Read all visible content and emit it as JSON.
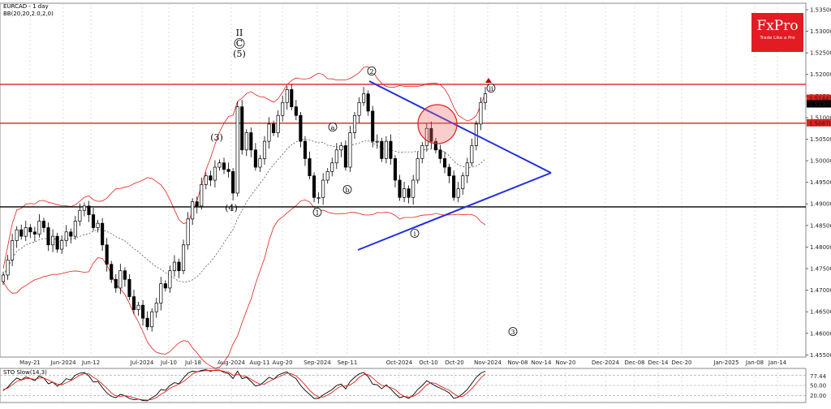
{
  "header": {
    "symbol": "EURCAD - 1 day",
    "indicator": "BB(20,20,2.0,2,0)",
    "osc_label": "STO Slow(14,3)"
  },
  "logo": {
    "brand": "FxPro",
    "tagline": "Trade Like a Pro"
  },
  "colors": {
    "candle_up": "#ffffff",
    "candle_down": "#000000",
    "band": "#e0201c",
    "level_red": "#e0201c",
    "level_black": "#000000",
    "triangle": "#1f2fe0",
    "grid": "#cfcfcf"
  },
  "chart_data": {
    "type": "candlestick",
    "y_axis": {
      "ticks": [
        "1.53500",
        "1.53000",
        "1.52500",
        "1.52000",
        "1.51500",
        "1.51000",
        "1.50500",
        "1.50000",
        "1.49500",
        "1.49000",
        "1.48500",
        "1.48000",
        "1.47500",
        "1.47000",
        "1.46500",
        "1.46000",
        "1.45500"
      ],
      "ylim": [
        1.4545,
        1.5365
      ]
    },
    "price_labels": [
      {
        "text": "1.51441",
        "value": 1.51441,
        "box": "#e0201c"
      },
      {
        "text": "1.51309",
        "value": 1.51309,
        "box": "#000000"
      },
      {
        "text": "1.50870",
        "value": 1.5087,
        "box": "#e0201c"
      }
    ],
    "x_axis": [
      "May-21",
      "Jun-2024",
      "Jun-12",
      "Jul-2024",
      "Jul-10",
      "Jul-18",
      "Aug-2024",
      "Aug-11",
      "Aug-20",
      "Sep-2024",
      "Sep-11",
      "Oct-2024",
      "Oct-10",
      "Oct-20",
      "Nov-2024",
      "Nov-08",
      "Nov-14",
      "Nov-20",
      "Dec-2024",
      "Dec-08",
      "Dec-14",
      "Dec-20",
      "Jan-2025",
      "Jan-08",
      "Jan-14"
    ],
    "levels": [
      1.5177,
      1.5087,
      1.4893
    ],
    "close": [
      1.4735,
      1.477,
      1.4815,
      1.484,
      1.4825,
      1.4845,
      1.4835,
      1.483,
      1.486,
      1.4845,
      1.4805,
      1.4825,
      1.4795,
      1.4815,
      1.4835,
      1.4825,
      1.486,
      1.4885,
      1.4895,
      1.4875,
      1.4845,
      1.4855,
      1.4805,
      1.476,
      1.4725,
      1.4705,
      1.4745,
      1.4725,
      1.4685,
      1.4655,
      1.4665,
      1.4635,
      1.4615,
      1.465,
      1.467,
      1.4715,
      1.4705,
      1.4745,
      1.4765,
      1.4745,
      1.4805,
      1.4865,
      1.4905,
      1.4895,
      1.4945,
      1.4965,
      1.4955,
      1.4985,
      1.4995,
      1.498,
      1.4975,
      1.4925,
      1.5125,
      1.5025,
      1.5065,
      1.5025,
      1.4985,
      1.5005,
      1.5045,
      1.5085,
      1.5065,
      1.5105,
      1.5135,
      1.5165,
      1.5125,
      1.5105,
      1.5045,
      1.5005,
      1.4965,
      1.4915,
      1.4915,
      1.4955,
      1.4975,
      1.4995,
      1.5025,
      1.5035,
      1.4985,
      1.5065,
      1.5105,
      1.5135,
      1.5155,
      1.5115,
      1.5045,
      1.5045,
      1.5005,
      1.5045,
      1.5005,
      1.4955,
      1.4915,
      1.4935,
      1.4915,
      1.4955,
      1.5005,
      1.5035,
      1.5075,
      1.5045,
      1.5025,
      1.5005,
      1.4985,
      1.4965,
      1.4915,
      1.4935,
      1.4965,
      1.4995,
      1.5035,
      1.5085,
      1.5135,
      1.5155
    ],
    "annotations": [
      "II",
      "C",
      "(5)",
      "2",
      "(3)",
      "(4)",
      "1",
      "a",
      "b",
      "i",
      "ii",
      "3"
    ],
    "oscillator": {
      "name": "STO Slow(14,3)",
      "ticks": [
        "77.44",
        "50.00",
        "20.00"
      ],
      "ylim": [
        0,
        100
      ],
      "main": [
        35,
        45,
        60,
        72,
        66,
        75,
        70,
        64,
        78,
        72,
        55,
        60,
        48,
        56,
        70,
        66,
        80,
        86,
        88,
        78,
        60,
        62,
        44,
        28,
        18,
        14,
        24,
        20,
        12,
        8,
        10,
        6,
        5,
        14,
        22,
        38,
        36,
        50,
        58,
        55,
        72,
        86,
        92,
        90,
        94,
        96,
        92,
        95,
        95,
        88,
        85,
        70,
        92,
        70,
        74,
        62,
        48,
        52,
        62,
        74,
        68,
        80,
        86,
        90,
        78,
        70,
        50,
        36,
        24,
        12,
        12,
        22,
        30,
        38,
        50,
        54,
        40,
        62,
        74,
        84,
        88,
        76,
        54,
        52,
        40,
        52,
        40,
        26,
        14,
        18,
        12,
        22,
        38,
        50,
        64,
        56,
        48,
        42,
        36,
        28,
        12,
        16,
        26,
        38,
        56,
        74,
        86,
        92
      ],
      "signal": [
        38,
        42,
        52,
        62,
        66,
        70,
        70,
        68,
        72,
        72,
        66,
        60,
        54,
        52,
        58,
        64,
        72,
        80,
        85,
        84,
        74,
        66,
        54,
        42,
        28,
        20,
        18,
        20,
        18,
        14,
        10,
        8,
        7,
        9,
        14,
        24,
        32,
        42,
        48,
        54,
        62,
        72,
        84,
        90,
        92,
        94,
        94,
        94,
        94,
        92,
        89,
        80,
        82,
        78,
        76,
        68,
        60,
        54,
        54,
        62,
        68,
        74,
        80,
        86,
        84,
        78,
        66,
        52,
        36,
        24,
        16,
        16,
        22,
        30,
        40,
        48,
        48,
        52,
        60,
        74,
        82,
        82,
        72,
        60,
        50,
        48,
        44,
        38,
        26,
        18,
        16,
        18,
        26,
        38,
        52,
        58,
        56,
        48,
        42,
        36,
        26,
        18,
        18,
        28,
        40,
        56,
        72,
        84
      ]
    }
  }
}
